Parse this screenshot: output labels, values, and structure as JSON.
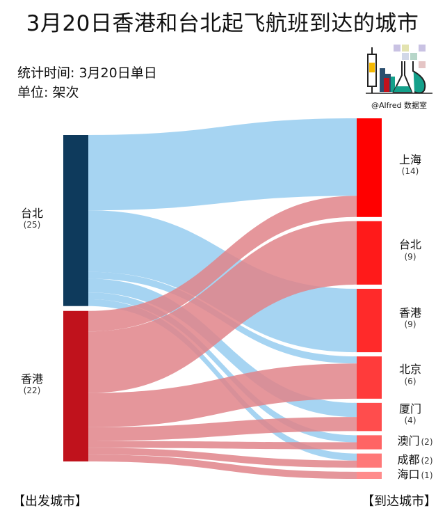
{
  "title": "3月20日香港和台北起飞航班到达的城市",
  "meta": {
    "stat_time": "统计时间: 3月20日单日",
    "unit": "单位: 架次"
  },
  "logo": {
    "caption": "@Alfred 数据室"
  },
  "sources": [
    {
      "name": "台北",
      "count": "(25)",
      "value": 25,
      "color": "#0e3a5c",
      "flow_color": "#97cdf0"
    },
    {
      "name": "香港",
      "count": "(22)",
      "value": 22,
      "color": "#c0121c",
      "flow_color": "#e0848a"
    }
  ],
  "targets": [
    {
      "name": "上海",
      "count": "(14)",
      "value": 14,
      "color": "#ff0000"
    },
    {
      "name": "台北",
      "count": "(9)",
      "value": 9,
      "color": "#ff1a1a"
    },
    {
      "name": "香港",
      "count": "(9)",
      "value": 9,
      "color": "#ff2a2a"
    },
    {
      "name": "北京",
      "count": "(6)",
      "value": 6,
      "color": "#ff3b3b"
    },
    {
      "name": "厦门",
      "count": "(4)",
      "value": 4,
      "color": "#ff4d4d"
    },
    {
      "name": "澳门",
      "count": "(2)",
      "value": 2,
      "color": "#ff6464"
    },
    {
      "name": "成都",
      "count": "(2)",
      "value": 2,
      "color": "#ff7878"
    },
    {
      "name": "海口",
      "count": "(1)",
      "value": 1,
      "color": "#ff8c8c"
    }
  ],
  "links": [
    {
      "source": "台北",
      "target": "上海",
      "value": 11
    },
    {
      "source": "台北",
      "target": "香港",
      "value": 9
    },
    {
      "source": "台北",
      "target": "北京",
      "value": 1
    },
    {
      "source": "台北",
      "target": "厦门",
      "value": 2
    },
    {
      "source": "台北",
      "target": "澳门",
      "value": 1
    },
    {
      "source": "台北",
      "target": "成都",
      "value": 1
    },
    {
      "source": "香港",
      "target": "上海",
      "value": 3
    },
    {
      "source": "香港",
      "target": "台北",
      "value": 9
    },
    {
      "source": "香港",
      "target": "北京",
      "value": 5
    },
    {
      "source": "香港",
      "target": "厦门",
      "value": 2
    },
    {
      "source": "香港",
      "target": "澳门",
      "value": 1
    },
    {
      "source": "香港",
      "target": "成都",
      "value": 1
    },
    {
      "source": "香港",
      "target": "海口",
      "value": 1
    }
  ],
  "footer": {
    "left": "【出发城市】",
    "right": "【到达城市】"
  }
}
